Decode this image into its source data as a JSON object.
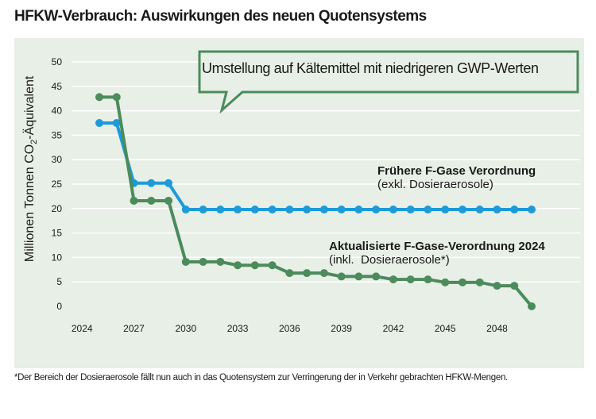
{
  "title": "HFKW-Verbrauch: Auswirkungen des neuen Quotensystems",
  "footnote": "*Der Bereich der Dosieraerosole fällt nun auch in das Quotensystem zur Verringerung der in Verkehr gebrachten HFKW-Mengen.",
  "callout": "Umstellung auf Kältemittel mit niedrigeren GWP-Werten",
  "colors": {
    "panel": "#e8efe6",
    "blue": "#1c9bd8",
    "green": "#4b8b5c",
    "grid": "#ffffff"
  },
  "chart_data": {
    "type": "line",
    "ylabel_pre": "Millionen Tonnen CO",
    "ylabel_sub": "2",
    "ylabel_post": "-Äquivalent",
    "ylim": [
      0,
      50
    ],
    "yticks": [
      0,
      5,
      10,
      15,
      20,
      25,
      30,
      35,
      40,
      45,
      50
    ],
    "xticks": [
      "2024",
      "2027",
      "2030",
      "2033",
      "2036",
      "2039",
      "2042",
      "2045",
      "2048"
    ],
    "grid": true,
    "x": [
      2025,
      2026,
      2027,
      2028,
      2029,
      2030,
      2031,
      2032,
      2033,
      2034,
      2035,
      2036,
      2037,
      2038,
      2039,
      2040,
      2041,
      2042,
      2043,
      2044,
      2045,
      2046,
      2047,
      2048,
      2049,
      2050
    ],
    "series": [
      {
        "name": "Frühere F-Gase Verordnung",
        "subtitle": "(exkl. Dosieraerosole)",
        "color": "#1c9bd8",
        "values": [
          37.5,
          37.5,
          25.2,
          25.2,
          25.2,
          19.8,
          19.8,
          19.8,
          19.8,
          19.8,
          19.8,
          19.8,
          19.8,
          19.8,
          19.8,
          19.8,
          19.8,
          19.8,
          19.8,
          19.8,
          19.8,
          19.8,
          19.8,
          19.8,
          19.8,
          19.8
        ]
      },
      {
        "name": "Aktualisierte F-Gase-Verordnung 2024",
        "subtitle": "(inkl.  Dosieraerosole*)",
        "color": "#4b8b5c",
        "values": [
          42.8,
          42.8,
          21.6,
          21.6,
          21.6,
          9.1,
          9.1,
          9.1,
          8.4,
          8.4,
          8.4,
          6.8,
          6.8,
          6.8,
          6.1,
          6.1,
          6.1,
          5.5,
          5.5,
          5.5,
          4.9,
          4.9,
          4.9,
          4.2,
          4.2,
          0
        ]
      }
    ]
  }
}
